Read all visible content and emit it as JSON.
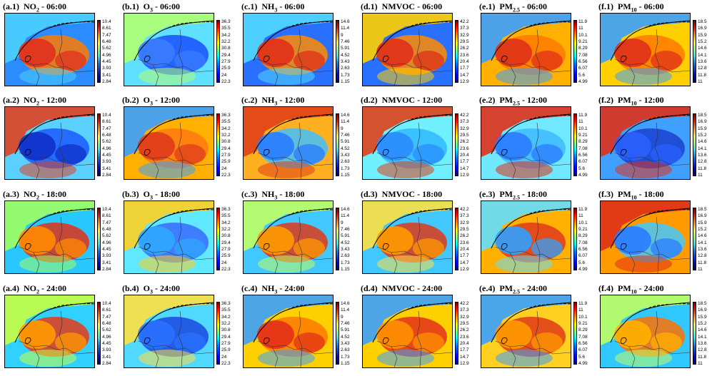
{
  "figure": {
    "columns": [
      {
        "id": "a",
        "species": "NO",
        "sub": "2",
        "ticks": [
          "10.4",
          "8.61",
          "7.47",
          "6.48",
          "5.62",
          "4.96",
          "4.45",
          "3.93",
          "3.41",
          "2.84"
        ],
        "colors": {
          "06": [
            "#e0301e",
            "#ff7a00",
            "#2a8cff",
            "#4ad1ff"
          ],
          "12": [
            "#1030c8",
            "#1a5aff",
            "#5ad0ff",
            "#e04020"
          ],
          "18": [
            "#ff8a00",
            "#e03018",
            "#28c8ff",
            "#a0ff60"
          ],
          "24": [
            "#ff9a00",
            "#e63a1a",
            "#30d0ff",
            "#c8ff40"
          ]
        }
      },
      {
        "id": "b",
        "species": "O",
        "sub": "3",
        "ticks": [
          "36.3",
          "35.5",
          "34.2",
          "32.2",
          "30.8",
          "29.4",
          "27.9",
          "25.9",
          "24",
          "22.3"
        ],
        "colors": {
          "06": [
            "#3a7cff",
            "#1a4dff",
            "#5fe0ff",
            "#b0ff70"
          ],
          "12": [
            "#e03a1c",
            "#ff7a10",
            "#ffb000",
            "#3aa0ff"
          ],
          "18": [
            "#30a8ff",
            "#3a6aff",
            "#60e8ff",
            "#ffd020"
          ],
          "24": [
            "#2a70ff",
            "#1a48e0",
            "#50d8ff",
            "#ffe040"
          ]
        }
      },
      {
        "id": "c",
        "species": "NH",
        "sub": "3",
        "ticks": [
          "14.6",
          "11.4",
          "9",
          "7.46",
          "5.91",
          "4.52",
          "3.43",
          "2.63",
          "1.73",
          "1.15"
        ],
        "colors": {
          "06": [
            "#e03018",
            "#ff8a00",
            "#2a70ff",
            "#50d8ff"
          ],
          "12": [
            "#2a7cff",
            "#40c0ff",
            "#ffb020",
            "#e04018"
          ],
          "18": [
            "#ff9a00",
            "#e0381a",
            "#40c8ff",
            "#c0ff60"
          ],
          "24": [
            "#e33018",
            "#ff7a00",
            "#ffd000",
            "#3aa0ff"
          ]
        }
      },
      {
        "id": "d",
        "species": "NMVOC",
        "sub": "",
        "ticks": [
          "42.2",
          "37.3",
          "32.9",
          "29.5",
          "26.2",
          "23.6",
          "20.4",
          "17.7",
          "14.7",
          "12.9"
        ],
        "colors": {
          "06": [
            "#e03018",
            "#ff8a00",
            "#2a70ff",
            "#ffd000"
          ],
          "12": [
            "#2a8cff",
            "#30b8ff",
            "#70f0ff",
            "#e04018"
          ],
          "18": [
            "#ff9a00",
            "#e0381a",
            "#40c8ff",
            "#ffe040"
          ],
          "24": [
            "#ff9000",
            "#e3301a",
            "#ffd000",
            "#3aa0ff"
          ]
        }
      },
      {
        "id": "e",
        "species": "PM",
        "sub": "2.5",
        "ticks": [
          "11.9",
          "11",
          "10.1",
          "9.21",
          "8.29",
          "7.08",
          "6.56",
          "6.07",
          "5.6",
          "4.99"
        ],
        "colors": {
          "06": [
            "#e03018",
            "#ff7a00",
            "#ffb000",
            "#3aa0ff"
          ],
          "12": [
            "#2a7cff",
            "#40b8ff",
            "#70e8ff",
            "#e03018"
          ],
          "18": [
            "#30a0ff",
            "#e03a1a",
            "#ffb000",
            "#60e0ff"
          ],
          "24": [
            "#ff9a00",
            "#e0381a",
            "#ffd020",
            "#3aa0ff"
          ]
        }
      },
      {
        "id": "f",
        "species": "PM",
        "sub": "10",
        "ticks": [
          "18.5",
          "16.9",
          "15.9",
          "15.2",
          "14.6",
          "14.1",
          "13.6",
          "12.8",
          "11.8",
          "11"
        ],
        "colors": {
          "06": [
            "#e0301a",
            "#ff7a00",
            "#ffd000",
            "#3aa0ff"
          ],
          "12": [
            "#2a60ff",
            "#1a40d0",
            "#40a0ff",
            "#e03018"
          ],
          "18": [
            "#2a7cff",
            "#40c8ff",
            "#ff9a00",
            "#e03018"
          ],
          "24": [
            "#ffb000",
            "#ff7000",
            "#30c8ff",
            "#c0ff60"
          ]
        }
      }
    ],
    "rows": [
      {
        "idx": "1",
        "time": "06:00",
        "key": "06"
      },
      {
        "idx": "2",
        "time": "12:00",
        "key": "12"
      },
      {
        "idx": "3",
        "time": "18:00",
        "key": "18"
      },
      {
        "idx": "4",
        "time": "24:00",
        "key": "24"
      }
    ]
  }
}
